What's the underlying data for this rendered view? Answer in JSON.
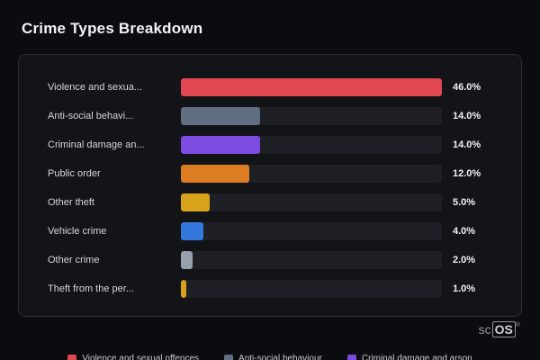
{
  "title": "Crime Types Breakdown",
  "chart_data": {
    "type": "bar",
    "orientation": "horizontal",
    "title": "Crime Types Breakdown",
    "categories": [
      "Violence and sexua...",
      "Anti-social behavi...",
      "Criminal damage an...",
      "Public order",
      "Other theft",
      "Vehicle crime",
      "Other crime",
      "Theft from the per..."
    ],
    "values": [
      46.0,
      14.0,
      14.0,
      12.0,
      5.0,
      4.0,
      2.0,
      1.0
    ],
    "value_labels": [
      "46.0%",
      "14.0%",
      "14.0%",
      "12.0%",
      "5.0%",
      "4.0%",
      "2.0%",
      "1.0%"
    ],
    "bar_colors": [
      "#e04851",
      "#5f6f81",
      "#7d4be0",
      "#dd7d23",
      "#d9a21b",
      "#3478dd",
      "#97a1ad",
      "#d9a21b"
    ],
    "max_value": 46.0,
    "xlim": [
      0,
      46.0
    ],
    "grid": false,
    "legend_position": "bottom",
    "legend": [
      {
        "label": "Violence and sexual offences",
        "color": "#e04851"
      },
      {
        "label": "Anti-social behaviour",
        "color": "#5f6f81"
      },
      {
        "label": "Criminal damage and arson",
        "color": "#7d4be0"
      }
    ]
  },
  "colors": {
    "page_bg": "#0b0c0f",
    "panel_bg": "#131418",
    "panel_border": "#2b2d33",
    "track_bg": "#1e2026",
    "title_text": "#f2f3f5",
    "label_text": "#d2d5da",
    "value_text": "#f0f1f3"
  },
  "watermark": {
    "prefix": "sc",
    "boxed": "OS",
    "reg": "®"
  }
}
